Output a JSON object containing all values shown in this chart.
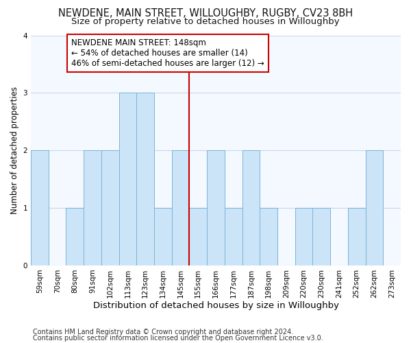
{
  "title": "NEWDENE, MAIN STREET, WILLOUGHBY, RUGBY, CV23 8BH",
  "subtitle": "Size of property relative to detached houses in Willoughby",
  "xlabel": "Distribution of detached houses by size in Willoughby",
  "ylabel": "Number of detached properties",
  "bin_labels": [
    "59sqm",
    "70sqm",
    "80sqm",
    "91sqm",
    "102sqm",
    "113sqm",
    "123sqm",
    "134sqm",
    "145sqm",
    "155sqm",
    "166sqm",
    "177sqm",
    "187sqm",
    "198sqm",
    "209sqm",
    "220sqm",
    "230sqm",
    "241sqm",
    "252sqm",
    "262sqm",
    "273sqm"
  ],
  "bar_heights": [
    2,
    0,
    1,
    2,
    2,
    3,
    3,
    1,
    2,
    1,
    2,
    1,
    2,
    1,
    0,
    1,
    1,
    0,
    1,
    2,
    0
  ],
  "bar_color": "#cce4f7",
  "bar_edgecolor": "#7ab4d8",
  "ref_line_color": "#cc0000",
  "ref_line_x": 8,
  "annotation_text_line1": "NEWDENE MAIN STREET: 148sqm",
  "annotation_text_line2": "← 54% of detached houses are smaller (14)",
  "annotation_text_line3": "46% of semi-detached houses are larger (12) →",
  "annotation_box_edgecolor": "#cc0000",
  "ylim": [
    0,
    4
  ],
  "yticks": [
    0,
    1,
    2,
    3,
    4
  ],
  "background_color": "#ffffff",
  "plot_bg_color": "#f4f8ff",
  "grid_color": "#c8d8e8",
  "title_fontsize": 10.5,
  "subtitle_fontsize": 9.5,
  "xlabel_fontsize": 9.5,
  "ylabel_fontsize": 8.5,
  "tick_fontsize": 7.5,
  "annotation_fontsize": 8.5,
  "footer_fontsize": 7.0
}
